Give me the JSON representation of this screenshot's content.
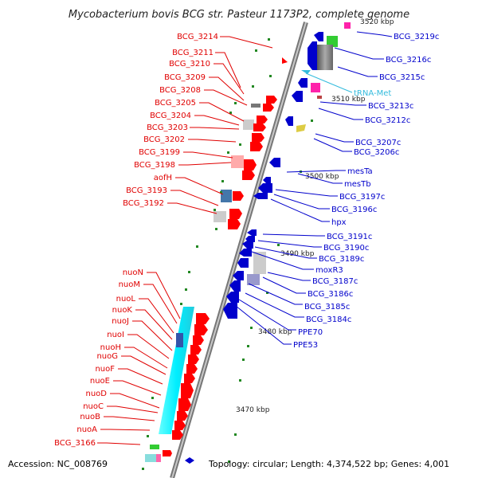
{
  "title": "Mycobacterium bovis BCG str. Pasteur 1173P2, complete genome",
  "footer": {
    "accession": "Accession: NC_008769",
    "summary": "Topology: circular; Length: 4,374,522 bp; Genes: 4,001"
  },
  "scale_ticks": [
    {
      "label": "3520 kbp"
    },
    {
      "label": "3510 kbp"
    },
    {
      "label": "3500 kbp"
    },
    {
      "label": "3490 kbp"
    },
    {
      "label": "3480 kbp"
    },
    {
      "label": "3470 kbp"
    }
  ],
  "left_labels": [
    "BCG_3214",
    "BCG_3211",
    "BCG_3210",
    "BCG_3209",
    "BCG_3208",
    "BCG_3205",
    "BCG_3204",
    "BCG_3203",
    "BCG_3202",
    "BCG_3199",
    "BCG_3198",
    "aofH",
    "BCG_3193",
    "BCG_3192",
    "nuoN",
    "nuoM",
    "nuoL",
    "nuoK",
    "nuoJ",
    "nuoI",
    "nuoH",
    "nuoG",
    "nuoF",
    "nuoE",
    "nuoD",
    "nuoC",
    "nuoB",
    "nuoA",
    "BCG_3166"
  ],
  "right_labels": [
    "BCG_3219c",
    "BCG_3216c",
    "BCG_3215c",
    "tRNA-Met",
    "BCG_3213c",
    "BCG_3212c",
    "BCG_3207c",
    "BCG_3206c",
    "mesTa",
    "mesTb",
    "BCG_3197c",
    "BCG_3196c",
    "hpx",
    "BCG_3191c",
    "BCG_3190c",
    "BCG_3189c",
    "moxR3",
    "BCG_3187c",
    "BCG_3186c",
    "BCG_3185c",
    "BCG_3184c",
    "PPE70",
    "PPE53"
  ],
  "colors": {
    "forward": "#ff0000",
    "reverse": "#0000cc",
    "rna": "#33bbdd",
    "backbone": "#999999"
  }
}
